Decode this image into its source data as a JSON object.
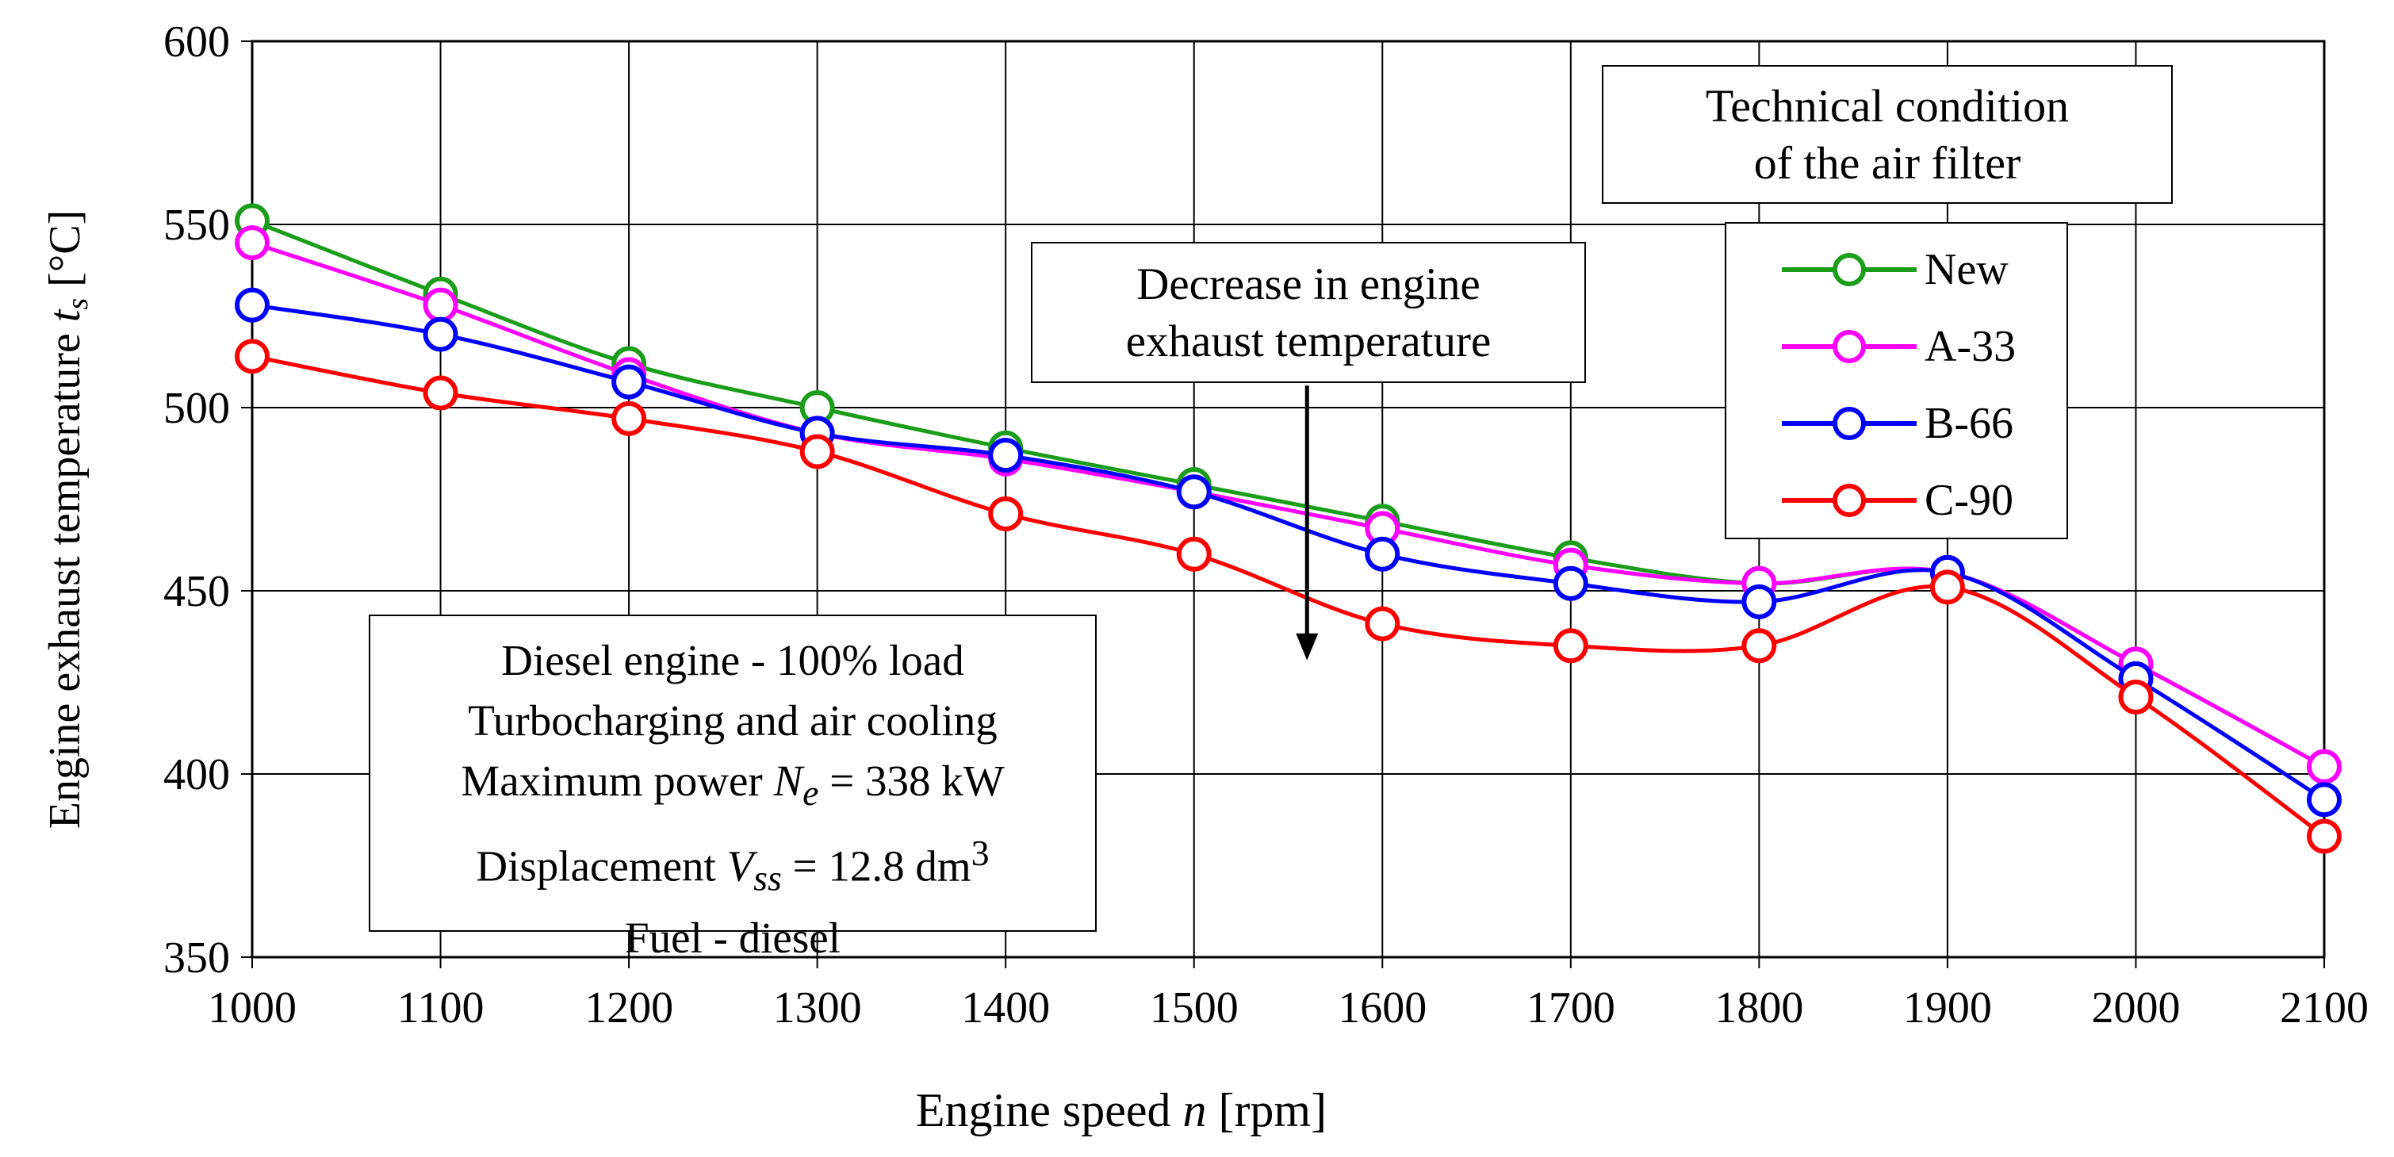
{
  "chart_data": {
    "type": "line",
    "title": "",
    "xlabel_prefix": "Engine speed ",
    "xlabel_var": "n",
    "xlabel_suffix": " [rpm]",
    "ylabel_prefix": "Engine exhaust temperature ",
    "ylabel_var": "t",
    "ylabel_sub": "s",
    "ylabel_suffix": " [°C]",
    "x": [
      1000,
      1100,
      1200,
      1300,
      1400,
      1500,
      1600,
      1700,
      1800,
      1900,
      2000,
      2100
    ],
    "xlim": [
      1000,
      2100
    ],
    "ylim": [
      350,
      600
    ],
    "xticks": [
      "1000",
      "1100",
      "1200",
      "1300",
      "1400",
      "1500",
      "1600",
      "1700",
      "1800",
      "1900",
      "2000",
      "2100"
    ],
    "yticks": [
      "350",
      "400",
      "450",
      "500",
      "550",
      "600"
    ],
    "grid": true,
    "series": [
      {
        "name": "New",
        "color": "#1a9e1a",
        "values": [
          551,
          531,
          512,
          500,
          489,
          479,
          469,
          459,
          452,
          455,
          430,
          402
        ]
      },
      {
        "name": "A-33",
        "color": "#ff00ff",
        "values": [
          545,
          528,
          509,
          493,
          486,
          477,
          467,
          457,
          452,
          455,
          430,
          402
        ]
      },
      {
        "name": "B-66",
        "color": "#0000ff",
        "values": [
          528,
          520,
          507,
          493,
          487,
          477,
          460,
          452,
          447,
          455,
          426,
          393
        ]
      },
      {
        "name": "C-90",
        "color": "#ff0000",
        "values": [
          514,
          504,
          497,
          488,
          471,
          460,
          441,
          435,
          435,
          451,
          421,
          383
        ]
      }
    ],
    "legend_title_line1": "Technical condition",
    "legend_title_line2": "of the air filter",
    "legend_placement": "top-right",
    "annotation_line1": "Decrease in engine",
    "annotation_line2": "exhaust temperature",
    "arrow_x": 1560,
    "arrow_y_from": 506,
    "arrow_y_to": 431,
    "info_line1": "Diesel engine - 100% load",
    "info_line2": "Turbocharging and air cooling",
    "info_line3_prefix": "Maximum power ",
    "info_line3_var": "N",
    "info_line3_sub": "e",
    "info_line3_suffix": " = 338 kW",
    "info_line4_prefix": "Displacement ",
    "info_line4_var": "V",
    "info_line4_sub": "ss",
    "info_line4_suffix": " = 12.8 dm",
    "info_line4_sup": "3",
    "info_line5": "Fuel - diesel"
  }
}
